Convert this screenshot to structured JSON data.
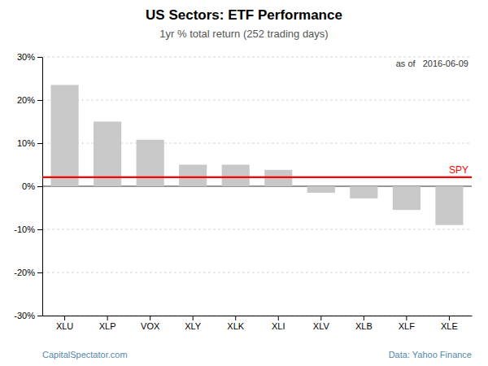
{
  "chart_data": {
    "type": "bar",
    "title": "US Sectors: ETF Performance",
    "subtitle": "1yr % total return (252 trading days)",
    "annotations": [
      "as of   2016-06-09",
      "CapitalSpectator.com",
      "Data: Yahoo Finance"
    ],
    "categories": [
      "XLU",
      "XLP",
      "VOX",
      "XLY",
      "XLK",
      "XLI",
      "XLV",
      "XLB",
      "XLF",
      "XLE"
    ],
    "values": [
      23.5,
      15.0,
      10.8,
      5.0,
      5.0,
      3.8,
      -1.5,
      -2.8,
      -5.5,
      -9.0
    ],
    "color": "#c8c8c8",
    "reference_line": {
      "label": "SPY",
      "value": 2.1,
      "color": "#ff0000"
    },
    "ylim": [
      -30,
      30
    ],
    "yticks": [
      {
        "value": -30,
        "label": "-30%"
      },
      {
        "value": -20,
        "label": "-20%"
      },
      {
        "value": -10,
        "label": "-10%"
      },
      {
        "value": 0,
        "label": "0%"
      },
      {
        "value": 10,
        "label": "10%"
      },
      {
        "value": 20,
        "label": "20%"
      },
      {
        "value": 30,
        "label": "30%"
      }
    ],
    "grid": true
  }
}
